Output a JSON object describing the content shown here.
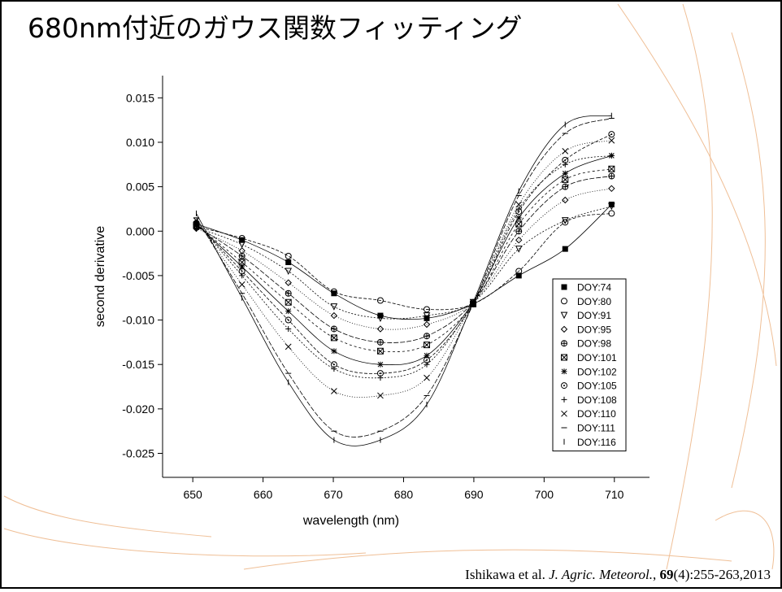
{
  "slide": {
    "title": "680nm付近のガウス関数フィッティング",
    "citation": {
      "authors": "Ishikawa et al.",
      "journal": "J. Agric. Meteorol.",
      "sep": ",",
      "volume": "69",
      "rest": "(4):255-263,2013"
    }
  },
  "chart_data": {
    "type": "scatter",
    "x_label": "wavelength (nm)",
    "y_label": "second derivative",
    "x": [
      650.5,
      657,
      663.6,
      670.1,
      676.7,
      683.3,
      689.9,
      696.4,
      703,
      709.6
    ],
    "xlim": [
      645.7,
      715
    ],
    "xticks": [
      650,
      660,
      670,
      680,
      690,
      700,
      710
    ],
    "ylim": [
      -0.0277,
      0.0175
    ],
    "yticks": [
      {
        "value": -0.025,
        "label": "-0.025"
      },
      {
        "value": -0.02,
        "label": "-0.020"
      },
      {
        "value": -0.015,
        "label": "-0.015"
      },
      {
        "value": -0.01,
        "label": "-0.010"
      },
      {
        "value": -0.005,
        "label": "-0.005"
      },
      {
        "value": 0,
        "label": "0.000"
      },
      {
        "value": 0.005,
        "label": "0.005"
      },
      {
        "value": 0.01,
        "label": "0.010"
      },
      {
        "value": 0.015,
        "label": "0.015"
      }
    ],
    "legend": "lower-right",
    "series": [
      {
        "name": "DOY:74",
        "marker": "square-filled",
        "color": "#000000",
        "values": [
          0.0008,
          -0.001,
          -0.0035,
          -0.007,
          -0.0095,
          -0.0098,
          -0.0082,
          -0.005,
          -0.002,
          0.003
        ]
      },
      {
        "name": "DOY:80",
        "marker": "circle",
        "color": "#000000",
        "values": [
          0.0005,
          -0.0008,
          -0.0028,
          -0.0068,
          -0.0078,
          -0.0088,
          -0.0082,
          -0.0045,
          0.001,
          0.002
        ]
      },
      {
        "name": "DOY:91",
        "marker": "triangle-down",
        "color": "#000000",
        "values": [
          0.0004,
          -0.0015,
          -0.0045,
          -0.0085,
          -0.0098,
          -0.0095,
          -0.008,
          -0.002,
          0.0012,
          0.0028
        ]
      },
      {
        "name": "DOY:95",
        "marker": "diamond",
        "color": "#000000",
        "values": [
          0.0003,
          -0.0022,
          -0.0058,
          -0.0095,
          -0.011,
          -0.0105,
          -0.008,
          -0.001,
          0.0035,
          0.0048
        ]
      },
      {
        "name": "DOY:98",
        "marker": "circle-plus",
        "color": "#000000",
        "values": [
          0.0006,
          -0.0028,
          -0.007,
          -0.011,
          -0.0125,
          -0.0118,
          -0.008,
          0,
          0.005,
          0.0062
        ]
      },
      {
        "name": "DOY:101",
        "marker": "square-x",
        "color": "#000000",
        "values": [
          0.0007,
          -0.0035,
          -0.008,
          -0.012,
          -0.0135,
          -0.0128,
          -0.0082,
          0.0008,
          0.0058,
          0.007
        ]
      },
      {
        "name": "DOY:102",
        "marker": "star",
        "color": "#000000",
        "values": [
          0.0008,
          -0.004,
          -0.009,
          -0.0135,
          -0.015,
          -0.014,
          -0.008,
          0.0015,
          0.0065,
          0.0085
        ]
      },
      {
        "name": "DOY:105",
        "marker": "circle-dot",
        "color": "#000000",
        "values": [
          0.0009,
          -0.0045,
          -0.01,
          -0.015,
          -0.016,
          -0.0145,
          -0.0082,
          0.0022,
          0.008,
          0.0109
        ]
      },
      {
        "name": "DOY:108",
        "marker": "plus",
        "color": "#000000",
        "values": [
          0.001,
          -0.005,
          -0.011,
          -0.0155,
          -0.0165,
          -0.015,
          -0.008,
          0.0025,
          0.0075,
          0.0085
        ]
      },
      {
        "name": "DOY:110",
        "marker": "cross",
        "color": "#000000",
        "values": [
          0.0012,
          -0.006,
          -0.013,
          -0.018,
          -0.0185,
          -0.0165,
          -0.008,
          0.003,
          0.009,
          0.0102
        ]
      },
      {
        "name": "DOY:111",
        "marker": "dash",
        "color": "#000000",
        "values": [
          0.0015,
          -0.007,
          -0.016,
          -0.0225,
          -0.0225,
          -0.0185,
          -0.0082,
          0.004,
          0.011,
          0.0127
        ]
      },
      {
        "name": "DOY:116",
        "marker": "vbar",
        "color": "#000000",
        "values": [
          0.002,
          -0.0075,
          -0.017,
          -0.0235,
          -0.0235,
          -0.0195,
          -0.008,
          0.0045,
          0.012,
          0.013
        ]
      }
    ]
  }
}
